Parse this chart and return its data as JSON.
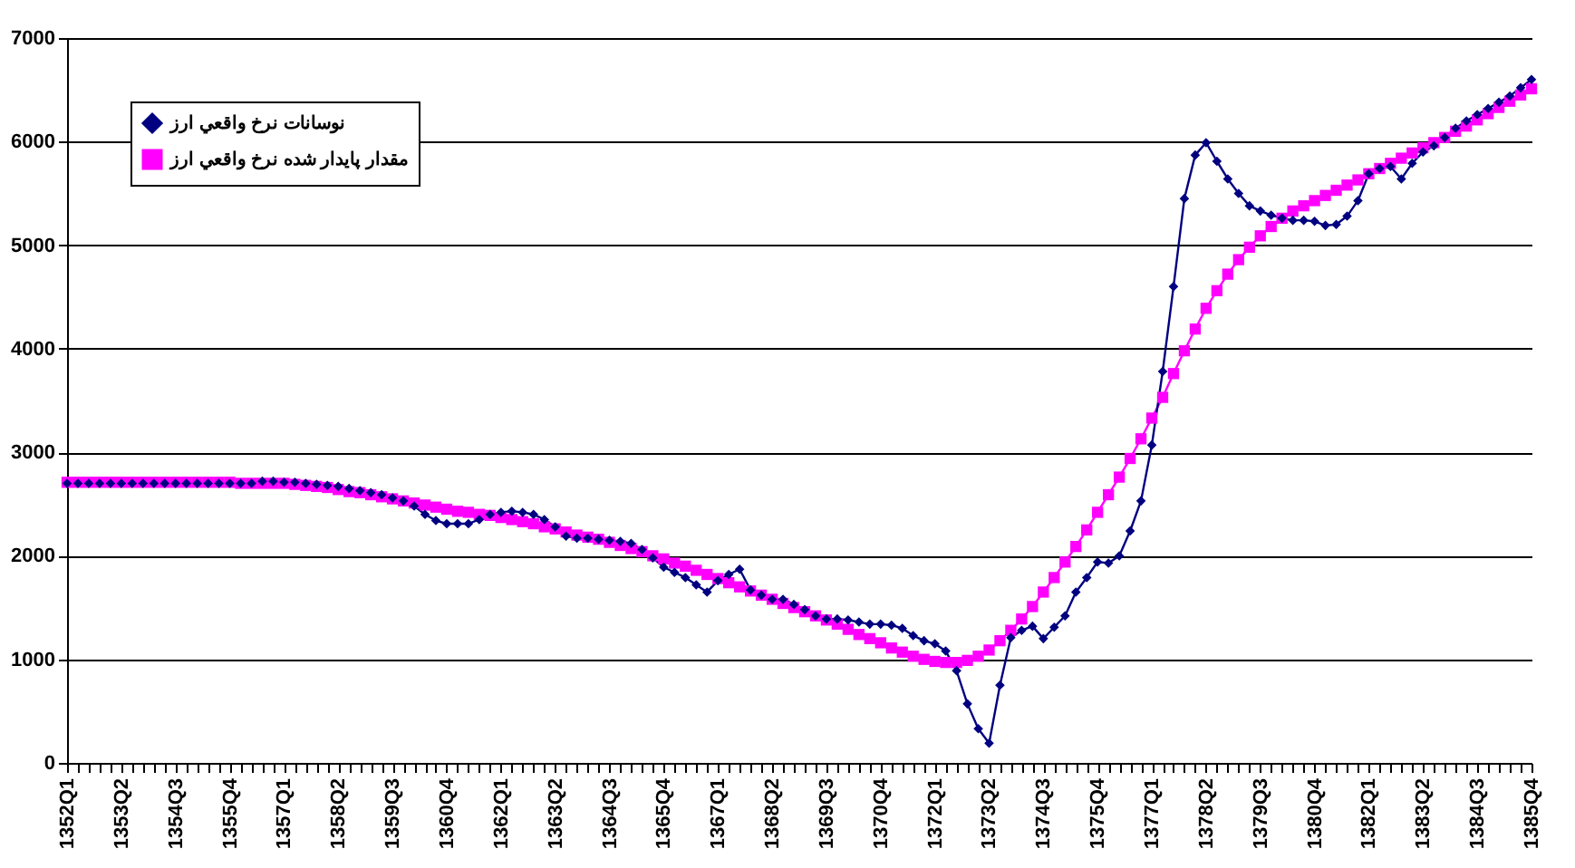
{
  "chart_data": {
    "type": "line",
    "categories": [
      "1352Q1",
      null,
      null,
      null,
      null,
      "1353Q2",
      null,
      null,
      null,
      null,
      "1354Q3",
      null,
      null,
      null,
      null,
      "1355Q4",
      null,
      null,
      null,
      null,
      "1357Q1",
      null,
      null,
      null,
      null,
      "1358Q2",
      null,
      null,
      null,
      null,
      "1359Q3",
      null,
      null,
      null,
      null,
      "1360Q4",
      null,
      null,
      null,
      null,
      "1362Q1",
      null,
      null,
      null,
      null,
      "1363Q2",
      null,
      null,
      null,
      null,
      "1364Q3",
      null,
      null,
      null,
      null,
      "1365Q4",
      null,
      null,
      null,
      null,
      "1367Q1",
      null,
      null,
      null,
      null,
      "1368Q2",
      null,
      null,
      null,
      null,
      "1369Q3",
      null,
      null,
      null,
      null,
      "1370Q4",
      null,
      null,
      null,
      null,
      "1372Q1",
      null,
      null,
      null,
      null,
      "1373Q2",
      null,
      null,
      null,
      null,
      "1374Q3",
      null,
      null,
      null,
      null,
      "1375Q4",
      null,
      null,
      null,
      null,
      "1377Q1",
      null,
      null,
      null,
      null,
      "1378Q2",
      null,
      null,
      null,
      null,
      "1379Q3",
      null,
      null,
      null,
      null,
      "1380Q4",
      null,
      null,
      null,
      null,
      "1382Q1",
      null,
      null,
      null,
      null,
      "1383Q2",
      null,
      null,
      null,
      null,
      "1384Q3",
      null,
      null,
      null,
      null,
      "1385Q4"
    ],
    "series": [
      {
        "name": "نوسانات نرخ واقعي ارز",
        "color": "#000080",
        "marker": "diamond",
        "values": [
          2700,
          2700,
          2700,
          2700,
          2700,
          2700,
          2700,
          2700,
          2700,
          2700,
          2700,
          2700,
          2700,
          2700,
          2700,
          2700,
          2700,
          2700,
          2720,
          2720,
          2710,
          2710,
          2700,
          2690,
          2680,
          2670,
          2650,
          2630,
          2610,
          2590,
          2560,
          2530,
          2480,
          2400,
          2340,
          2310,
          2310,
          2310,
          2350,
          2400,
          2420,
          2430,
          2420,
          2400,
          2350,
          2280,
          2190,
          2170,
          2170,
          2160,
          2150,
          2140,
          2120,
          2060,
          1980,
          1890,
          1840,
          1790,
          1720,
          1650,
          1760,
          1820,
          1870,
          1670,
          1620,
          1580,
          1580,
          1530,
          1480,
          1420,
          1390,
          1390,
          1380,
          1360,
          1340,
          1340,
          1330,
          1300,
          1230,
          1180,
          1150,
          1080,
          890,
          570,
          330,
          190,
          750,
          1210,
          1280,
          1320,
          1200,
          1310,
          1420,
          1650,
          1790,
          1940,
          1930,
          2000,
          2240,
          2530,
          3070,
          3780,
          4600,
          5450,
          5870,
          5990,
          5810,
          5640,
          5500,
          5380,
          5330,
          5290,
          5260,
          5240,
          5240,
          5230,
          5190,
          5200,
          5280,
          5430,
          5690,
          5740,
          5760,
          5640,
          5790,
          5900,
          5960,
          6040,
          6130,
          6200,
          6260,
          6320,
          6380,
          6440,
          6520,
          6600
        ]
      },
      {
        "name": "مقدار پايدار شده نرخ واقعي ارز",
        "color": "#ff00ff",
        "marker": "square",
        "values": [
          2710,
          2710,
          2710,
          2710,
          2710,
          2710,
          2710,
          2710,
          2710,
          2710,
          2710,
          2710,
          2710,
          2710,
          2710,
          2710,
          2700,
          2700,
          2700,
          2700,
          2700,
          2690,
          2680,
          2670,
          2660,
          2640,
          2620,
          2610,
          2590,
          2570,
          2550,
          2530,
          2510,
          2490,
          2470,
          2450,
          2430,
          2420,
          2400,
          2390,
          2370,
          2350,
          2330,
          2310,
          2280,
          2260,
          2230,
          2200,
          2180,
          2160,
          2130,
          2100,
          2070,
          2040,
          2000,
          1970,
          1930,
          1900,
          1860,
          1820,
          1780,
          1740,
          1700,
          1660,
          1620,
          1580,
          1540,
          1500,
          1460,
          1420,
          1380,
          1340,
          1290,
          1240,
          1200,
          1160,
          1110,
          1070,
          1030,
          1000,
          980,
          970,
          970,
          990,
          1030,
          1090,
          1180,
          1280,
          1390,
          1510,
          1650,
          1790,
          1940,
          2090,
          2250,
          2420,
          2590,
          2760,
          2940,
          3130,
          3330,
          3530,
          3760,
          3980,
          4190,
          4390,
          4560,
          4720,
          4860,
          4980,
          5090,
          5180,
          5260,
          5330,
          5380,
          5430,
          5480,
          5530,
          5580,
          5630,
          5690,
          5740,
          5790,
          5840,
          5890,
          5940,
          5990,
          6040,
          6100,
          6150,
          6210,
          6270,
          6330,
          6390,
          6450,
          6510
        ]
      }
    ],
    "ylim": [
      0,
      7000
    ],
    "yticks": [
      0,
      1000,
      2000,
      3000,
      4000,
      5000,
      6000,
      7000
    ],
    "grid": "y",
    "legend": "top left",
    "line_style": "solid"
  }
}
